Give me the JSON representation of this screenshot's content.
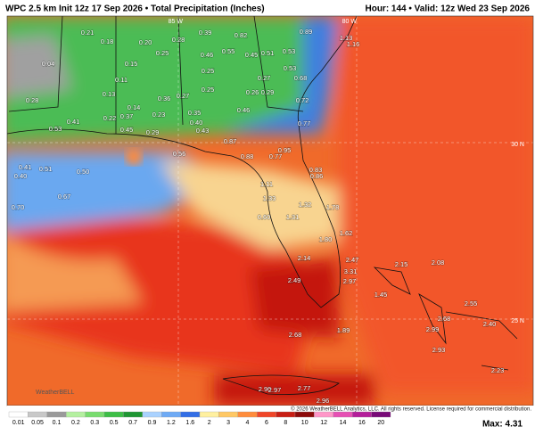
{
  "header": {
    "title": "WPC 2.5 km Init 12z 17 Sep 2026 • Total Precipitation (Inches)",
    "valid": "Hour: 144 • Valid: 12z Wed 23 Sep 2026"
  },
  "grid_labels": [
    "85 W",
    "80 W",
    "30 N",
    "25 N"
  ],
  "map_labels": [
    "0.21",
    "0.18",
    "0.20",
    "0.28",
    "0.39",
    "0.82",
    "0.89",
    "1.13",
    "1.16",
    "0.04",
    "0.15",
    "0.25",
    "0.46",
    "0.55",
    "0.45",
    "0.51",
    "0.53",
    "0.25",
    "0.27",
    "0.53",
    "0.26",
    "0.29",
    "0.68",
    "0.11",
    "0.13",
    "0.36",
    "0.27",
    "0.25",
    "0.28",
    "0.14",
    "0.37",
    "0.23",
    "0.35",
    "0.46",
    "0.72",
    "0.41",
    "0.22",
    "0.53",
    "0.45",
    "0.29",
    "0.40",
    "0.43",
    "0.87",
    "0.77",
    "0.95",
    "0.88",
    "0.77",
    "0.56",
    "0.41",
    "0.40",
    "0.51",
    "0.50",
    "0.83",
    "0.86",
    "1.11",
    "1.33",
    "1.32",
    "0.67",
    "1.78",
    "0.70",
    "1.31",
    "0.60",
    "1.80",
    "1.62",
    "2.14",
    "2.47",
    "3.31",
    "2.49",
    "2.97",
    "2.15",
    "2.08",
    "1.45",
    "2.55",
    "2.68",
    "2.99",
    "2.40",
    "2.68",
    "1.89",
    "2.93",
    "2.23",
    "2.90",
    "2.97",
    "2.77",
    "2.96"
  ],
  "colorbar": {
    "labels": [
      "0.01",
      "0.05",
      "0.1",
      "0.2",
      "0.3",
      "0.5",
      "0.7",
      "0.9",
      "1.2",
      "1.6",
      "2",
      "3",
      "4",
      "6",
      "8",
      "10",
      "12",
      "14",
      "16",
      "20"
    ],
    "colors": [
      "#ffffff",
      "#c8c8c8",
      "#9a9a9a",
      "#b4f0a0",
      "#78dc6e",
      "#3cbe46",
      "#1e9632",
      "#aad2ff",
      "#6eaaf5",
      "#326ee6",
      "#fff0a0",
      "#ffc864",
      "#ff8c3c",
      "#f04628",
      "#c81e14",
      "#8c0a0a",
      "#ff96c8",
      "#e650b4",
      "#b41e9b",
      "#780a78"
    ]
  },
  "max": "Max: 4.31",
  "copyright": "© 2026 WeatherBELL Analytics, LLC. All rights reserved. License required for commercial distribution.",
  "logo": "WeatherBELL"
}
